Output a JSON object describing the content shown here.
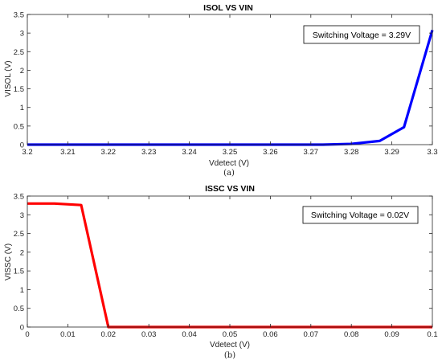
{
  "chart_data": [
    {
      "type": "line",
      "title": "ISOL VS VIN",
      "xlabel": "Vdetect (V)",
      "ylabel": "VISOL (V)",
      "xlim": [
        3.2,
        3.3
      ],
      "ylim": [
        0,
        3.5
      ],
      "xticks": [
        3.2,
        3.21,
        3.22,
        3.23,
        3.24,
        3.25,
        3.26,
        3.27,
        3.28,
        3.29,
        3.3
      ],
      "xtick_labels": [
        "3.2",
        "3.21",
        "3.22",
        "3.23",
        "3.24",
        "3.25",
        "3.26",
        "3.27",
        "3.28",
        "3.29",
        "3.3"
      ],
      "yticks": [
        0,
        0.5,
        1,
        1.5,
        2,
        2.5,
        3,
        3.5
      ],
      "ytick_labels": [
        "0",
        "0.5",
        "1",
        "1.5",
        "2",
        "2.5",
        "3",
        "3.5"
      ],
      "grid": false,
      "annotation": "Switching Voltage = 3.29V",
      "annotation_position": "top-right",
      "caption": "(a)",
      "series": [
        {
          "color": "#0000ff",
          "x": [
            3.2,
            3.207,
            3.213,
            3.22,
            3.227,
            3.233,
            3.24,
            3.247,
            3.253,
            3.26,
            3.267,
            3.273,
            3.28,
            3.287,
            3.293,
            3.3
          ],
          "y": [
            0,
            0,
            0,
            0,
            0,
            0,
            0,
            0,
            0,
            0,
            0,
            0,
            0.02,
            0.1,
            0.47,
            3.08
          ]
        }
      ]
    },
    {
      "type": "line",
      "title": "ISSC VS VIN",
      "xlabel": "Vdetect (V)",
      "ylabel": "VISSC (V)",
      "xlim": [
        0,
        0.1
      ],
      "ylim": [
        0,
        3.5
      ],
      "xticks": [
        0,
        0.01,
        0.02,
        0.03,
        0.04,
        0.05,
        0.06,
        0.07,
        0.08,
        0.09,
        0.1
      ],
      "xtick_labels": [
        "0",
        "0.01",
        "0.02",
        "0.03",
        "0.04",
        "0.05",
        "0.06",
        "0.07",
        "0.08",
        "0.09",
        "0.1"
      ],
      "yticks": [
        0,
        0.5,
        1,
        1.5,
        2,
        2.5,
        3,
        3.5
      ],
      "ytick_labels": [
        "0",
        "0.5",
        "1",
        "1.5",
        "2",
        "2.5",
        "3",
        "3.5"
      ],
      "grid": false,
      "annotation": "Switching Voltage = 0.02V",
      "annotation_position": "top-right",
      "caption": "(b)",
      "series": [
        {
          "color": "#ff0000",
          "x": [
            0,
            0.0067,
            0.0133,
            0.02,
            0.0267,
            0.0333,
            0.04,
            0.0467,
            0.0533,
            0.06,
            0.0667,
            0.0733,
            0.08,
            0.0867,
            0.0933,
            0.1
          ],
          "y": [
            3.3,
            3.3,
            3.26,
            0,
            0,
            0,
            0,
            0,
            0,
            0,
            0,
            0,
            0,
            0,
            0,
            0
          ]
        }
      ]
    }
  ]
}
